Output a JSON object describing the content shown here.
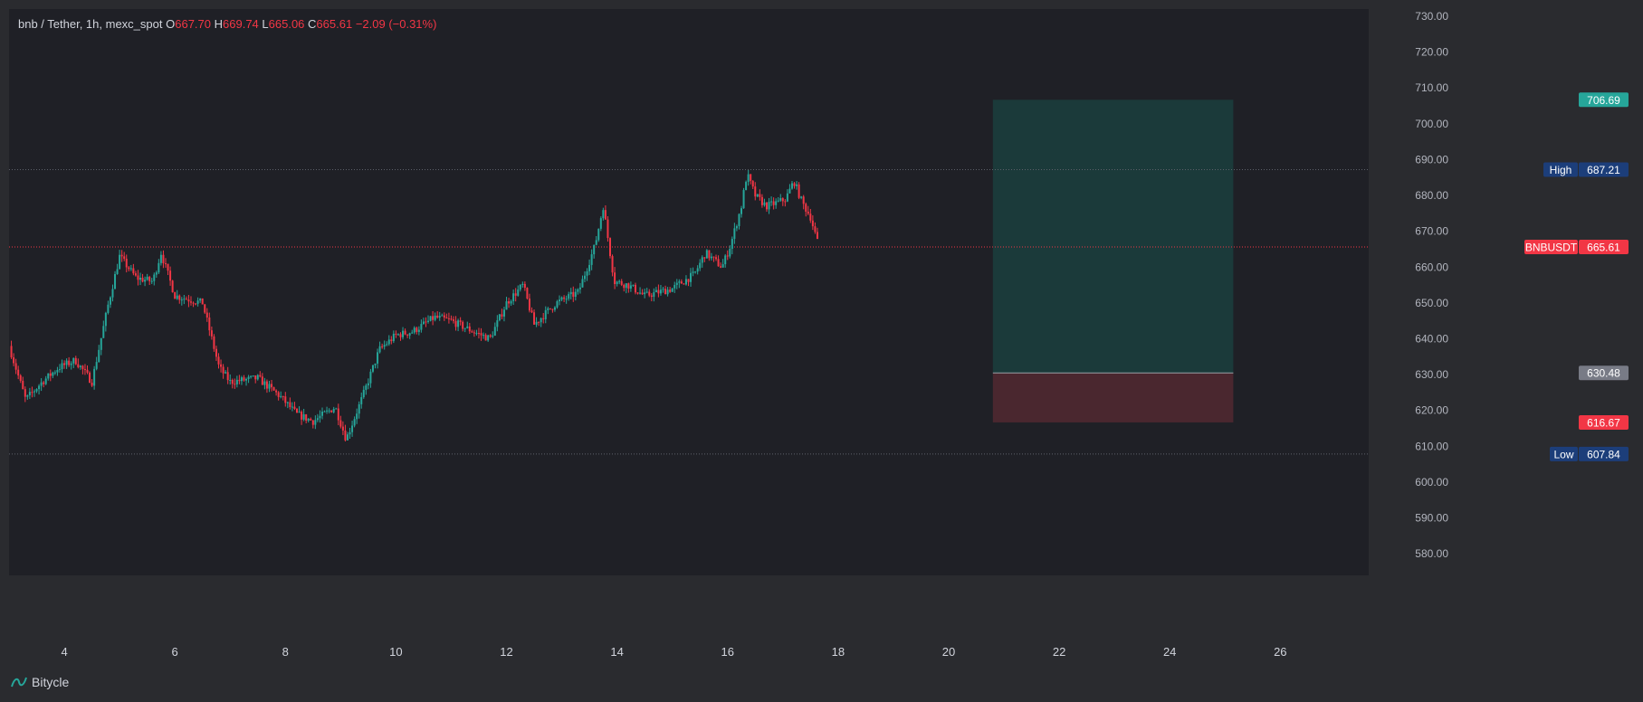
{
  "symbol_bar": {
    "title": "bnb / Tether, 1h, mexc_spot",
    "o_label": "O",
    "o_value": "667.70",
    "h_label": "H",
    "h_value": "669.74",
    "l_label": "L",
    "l_value": "665.06",
    "c_label": "C",
    "c_value": "665.61",
    "change": "−2.09 (−0.31%)"
  },
  "footer": {
    "brand": "Bitycle"
  },
  "colors": {
    "up": "#26a69a",
    "down": "#f23645",
    "background": "#1f2026",
    "frame": "#2a2b2f",
    "target_zone": "#1b3a3a",
    "stop_zone": "#4a272f",
    "badge_blue": "#1c3e7a",
    "badge_grey": "#787b86"
  },
  "chart_data": {
    "type": "candlestick",
    "x_axis_unit": "day of month",
    "xlim": [
      3.0,
      27.6
    ],
    "ylim": [
      574,
      732
    ],
    "x_ticks": [
      4,
      6,
      8,
      10,
      12,
      14,
      16,
      18,
      20,
      22,
      24,
      26
    ],
    "y_ticks": [
      580,
      590,
      600,
      610,
      620,
      630,
      640,
      650,
      660,
      670,
      680,
      690,
      700,
      710,
      720,
      730
    ],
    "anchors": [
      [
        3.0,
        638
      ],
      [
        3.3,
        623
      ],
      [
        3.6,
        628
      ],
      [
        3.9,
        632
      ],
      [
        4.2,
        634
      ],
      [
        4.5,
        628
      ],
      [
        4.8,
        650
      ],
      [
        5.0,
        663
      ],
      [
        5.3,
        657
      ],
      [
        5.6,
        656
      ],
      [
        5.75,
        664
      ],
      [
        6.0,
        652
      ],
      [
        6.5,
        650
      ],
      [
        6.8,
        632
      ],
      [
        7.0,
        628
      ],
      [
        7.5,
        629
      ],
      [
        7.9,
        624
      ],
      [
        8.2,
        619
      ],
      [
        8.5,
        617
      ],
      [
        8.9,
        621
      ],
      [
        9.1,
        612
      ],
      [
        9.4,
        624
      ],
      [
        9.7,
        637
      ],
      [
        10.0,
        641
      ],
      [
        10.3,
        642
      ],
      [
        10.7,
        646
      ],
      [
        11.0,
        645
      ],
      [
        11.4,
        642
      ],
      [
        11.7,
        640
      ],
      [
        12.0,
        650
      ],
      [
        12.3,
        655
      ],
      [
        12.5,
        644
      ],
      [
        12.9,
        650
      ],
      [
        13.3,
        653
      ],
      [
        13.6,
        666
      ],
      [
        13.75,
        677
      ],
      [
        13.95,
        656
      ],
      [
        14.2,
        655
      ],
      [
        14.5,
        652
      ],
      [
        15.0,
        654
      ],
      [
        15.4,
        658
      ],
      [
        15.6,
        664
      ],
      [
        15.9,
        660
      ],
      [
        16.05,
        666
      ],
      [
        16.25,
        677
      ],
      [
        16.35,
        686
      ],
      [
        16.5,
        680
      ],
      [
        16.7,
        677
      ],
      [
        16.9,
        678
      ],
      [
        17.05,
        679
      ],
      [
        17.2,
        684
      ],
      [
        17.35,
        678
      ],
      [
        17.5,
        674
      ],
      [
        17.65,
        665.61
      ]
    ],
    "last_price": 665.61,
    "high": 687.21,
    "low": 607.84,
    "position": {
      "type": "long",
      "x_start": 20.8,
      "x_end": 25.15,
      "entry": 630.48,
      "target": 706.69,
      "stop": 616.67
    },
    "labels": {
      "last_price": "665.61",
      "ticker": "BNBUSDT",
      "high_price": "687.21",
      "high_tag": "High",
      "low_price": "607.84",
      "low_tag": "Low",
      "target": "706.69",
      "entry": "630.48",
      "stop": "616.67"
    }
  }
}
